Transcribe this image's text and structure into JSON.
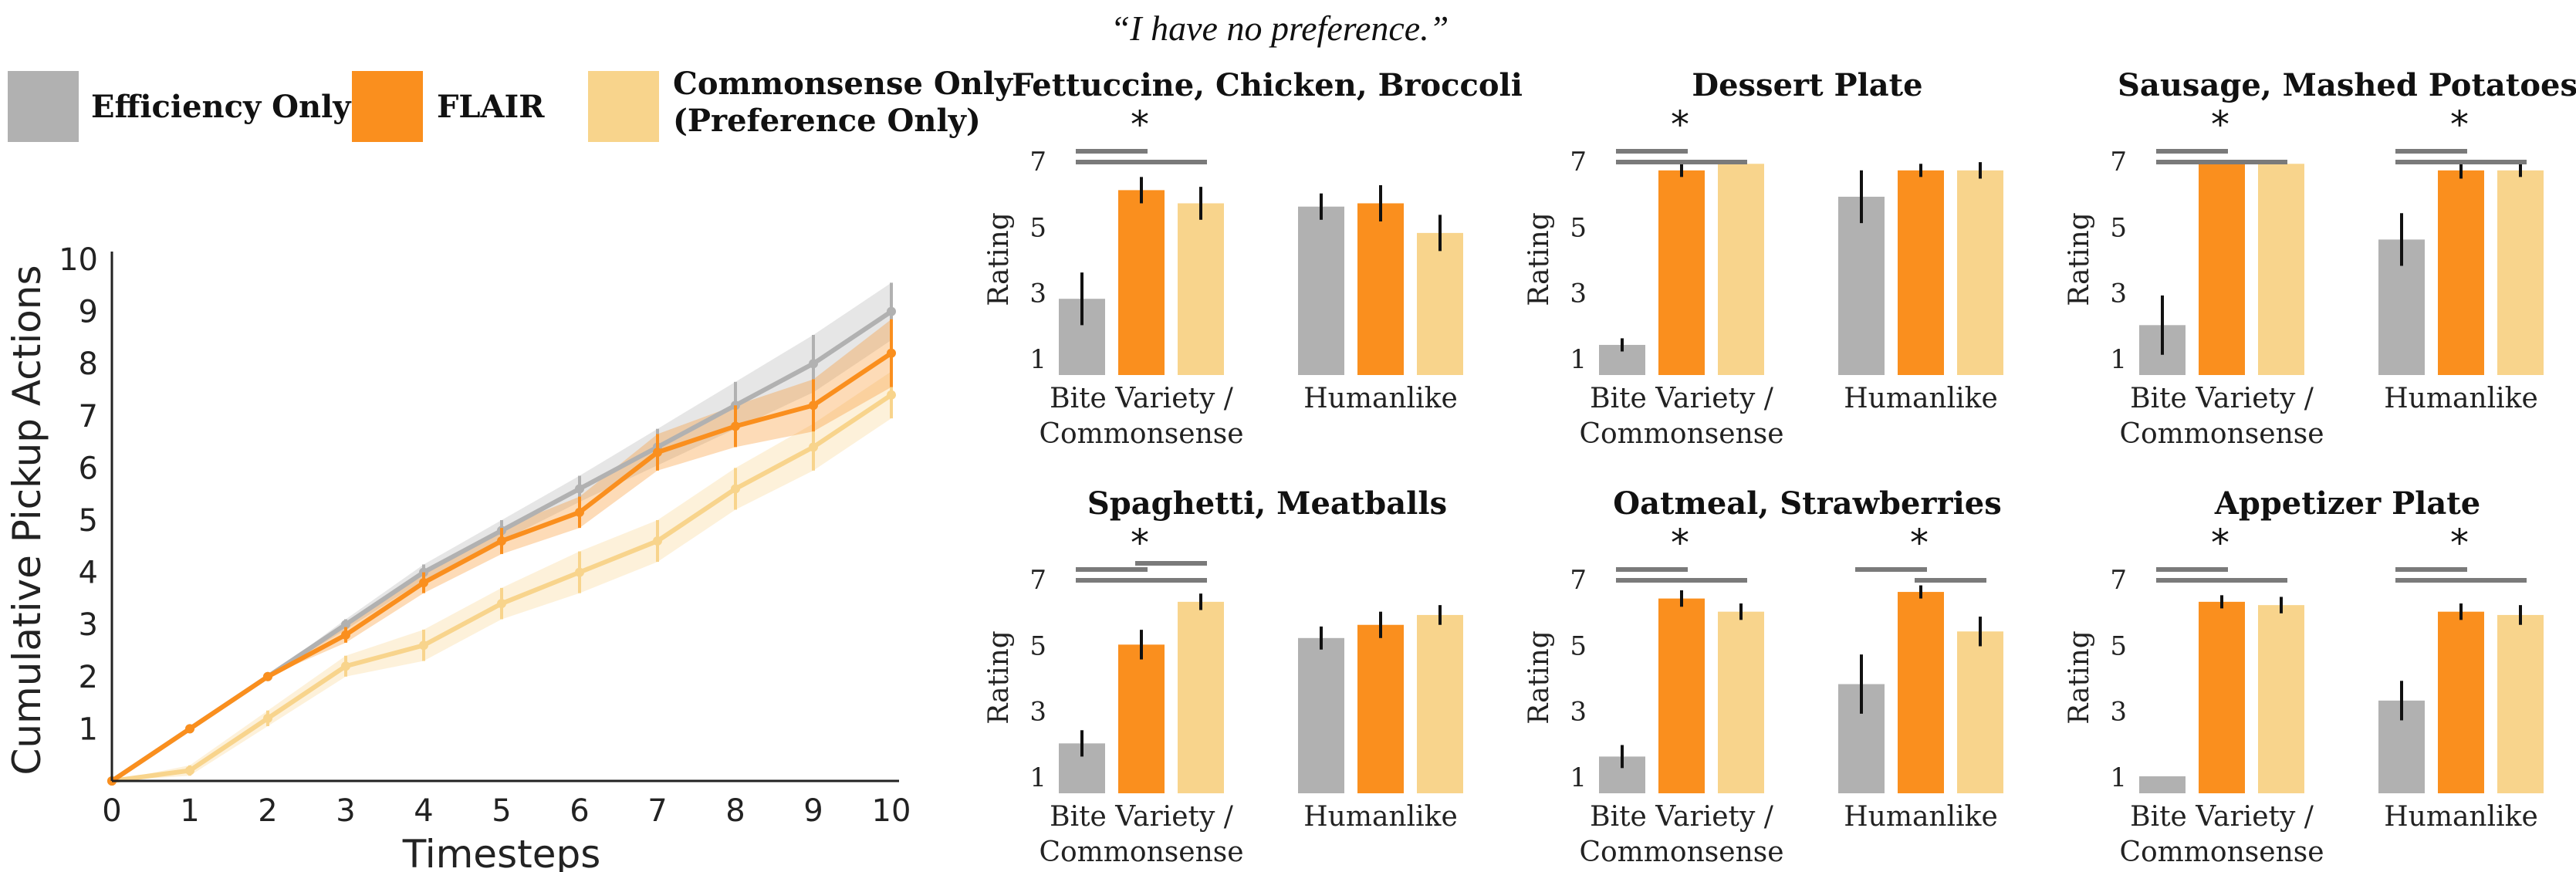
{
  "headline": "“I have no preference.”",
  "legend": [
    {
      "label": "Efficiency Only",
      "color": "#b1b1b1"
    },
    {
      "label": "FLAIR",
      "color": "#fa8f1e"
    },
    {
      "label": "Commonsense Only (Preference Only)",
      "lines": [
        "Commonsense Only",
        "(Preference Only)"
      ],
      "color": "#f8d48c"
    }
  ],
  "colors": {
    "efficiency": "#b1b1b1",
    "flair": "#fa8f1e",
    "commonsense": "#f8d48c",
    "bracket": "#7a7a7a"
  },
  "chart_data": [
    {
      "type": "line",
      "xlabel": "Timesteps",
      "ylabel": "Cumulative Pickup Actions",
      "xlim": [
        0,
        10
      ],
      "ylim": [
        0,
        10
      ],
      "xticks": [
        0,
        1,
        2,
        3,
        4,
        5,
        6,
        7,
        8,
        9,
        10
      ],
      "yticks": [
        1,
        2,
        3,
        4,
        5,
        6,
        7,
        8,
        9,
        10
      ],
      "grid": false,
      "series": [
        {
          "name": "Efficiency Only",
          "x": [
            0,
            1,
            2,
            3,
            4,
            5,
            6,
            7,
            8,
            9,
            10
          ],
          "y": [
            0,
            1,
            2,
            3,
            4,
            4.8,
            5.6,
            6.4,
            7.2,
            8,
            9
          ],
          "err": [
            0,
            0,
            0,
            0.1,
            0.15,
            0.2,
            0.25,
            0.35,
            0.45,
            0.55,
            0.55
          ]
        },
        {
          "name": "FLAIR",
          "x": [
            0,
            1,
            2,
            3,
            4,
            5,
            6,
            7,
            8,
            9,
            10
          ],
          "y": [
            0,
            1,
            2,
            2.8,
            3.8,
            4.6,
            5.15,
            6.3,
            6.8,
            7.2,
            8.2
          ],
          "err": [
            0,
            0,
            0,
            0.15,
            0.2,
            0.25,
            0.3,
            0.35,
            0.4,
            0.5,
            0.65
          ]
        },
        {
          "name": "Commonsense Only",
          "x": [
            0,
            1,
            2,
            3,
            4,
            5,
            6,
            7,
            8,
            9,
            10
          ],
          "y": [
            0,
            0.2,
            1.2,
            2.2,
            2.6,
            3.4,
            4,
            4.6,
            5.6,
            6.4,
            7.4
          ],
          "err": [
            0,
            0.1,
            0.15,
            0.2,
            0.3,
            0.3,
            0.4,
            0.4,
            0.4,
            0.45,
            0.45
          ]
        }
      ]
    },
    {
      "type": "bar",
      "title": "Fettuccine, Chicken, Broccoli",
      "ylabel": "Rating",
      "ylim": [
        1,
        7
      ],
      "yticks": [
        1,
        3,
        5,
        7
      ],
      "groups": [
        {
          "label": "Bite Variety / Commonsense",
          "lines": [
            "Bite Variety /",
            "Commonsense"
          ],
          "values": [
            2.8,
            6.1,
            5.7
          ],
          "err": [
            0.8,
            0.4,
            0.5
          ]
        },
        {
          "label": "Humanlike",
          "lines": [
            "Humanlike"
          ],
          "values": [
            5.6,
            5.7,
            4.8
          ],
          "err": [
            0.4,
            0.55,
            0.55
          ]
        }
      ],
      "significance": [
        {
          "group": 0,
          "star": "*",
          "pairs": [
            [
              0,
              1
            ],
            [
              0,
              2
            ]
          ]
        }
      ]
    },
    {
      "type": "bar",
      "title": "Dessert Plate",
      "ylabel": "Rating",
      "ylim": [
        1,
        7
      ],
      "yticks": [
        1,
        3,
        5,
        7
      ],
      "groups": [
        {
          "label": "Bite Variety / Commonsense",
          "lines": [
            "Bite Variety /",
            "Commonsense"
          ],
          "values": [
            1.4,
            6.7,
            6.9
          ],
          "err": [
            0.2,
            0.2,
            0
          ]
        },
        {
          "label": "Humanlike",
          "lines": [
            "Humanlike"
          ],
          "values": [
            5.9,
            6.7,
            6.7
          ],
          "err": [
            0.8,
            0.2,
            0.25
          ]
        }
      ],
      "significance": [
        {
          "group": 0,
          "star": "*",
          "pairs": [
            [
              0,
              1
            ],
            [
              0,
              2
            ]
          ]
        }
      ]
    },
    {
      "type": "bar",
      "title": "Sausage, Mashed Potatoes",
      "ylabel": "Rating",
      "ylim": [
        1,
        7
      ],
      "yticks": [
        1,
        3,
        5,
        7
      ],
      "groups": [
        {
          "label": "Bite Variety / Commonsense",
          "lines": [
            "Bite Variety /",
            "Commonsense"
          ],
          "values": [
            2.0,
            6.9,
            6.9
          ],
          "err": [
            0.9,
            0,
            0
          ]
        },
        {
          "label": "Humanlike",
          "lines": [
            "Humanlike"
          ],
          "values": [
            4.6,
            6.7,
            6.7
          ],
          "err": [
            0.8,
            0.25,
            0.2
          ]
        }
      ],
      "significance": [
        {
          "group": 0,
          "star": "*",
          "pairs": [
            [
              0,
              1
            ],
            [
              0,
              2
            ]
          ]
        },
        {
          "group": 1,
          "star": "*",
          "pairs": [
            [
              0,
              1
            ],
            [
              0,
              2
            ]
          ]
        }
      ]
    },
    {
      "type": "bar",
      "title": "Spaghetti, Meatballs",
      "ylabel": "Rating",
      "ylim": [
        1,
        7
      ],
      "yticks": [
        1,
        3,
        5,
        7
      ],
      "groups": [
        {
          "label": "Bite Variety / Commonsense",
          "lines": [
            "Bite Variety /",
            "Commonsense"
          ],
          "values": [
            2.0,
            5.0,
            6.3
          ],
          "err": [
            0.4,
            0.45,
            0.25
          ]
        },
        {
          "label": "Humanlike",
          "lines": [
            "Humanlike"
          ],
          "values": [
            5.2,
            5.6,
            5.9
          ],
          "err": [
            0.35,
            0.4,
            0.3
          ]
        }
      ],
      "significance": [
        {
          "group": 0,
          "star": "*",
          "pairs": [
            [
              0,
              1
            ],
            [
              0,
              2
            ],
            [
              1,
              2
            ]
          ]
        }
      ]
    },
    {
      "type": "bar",
      "title": "Oatmeal, Strawberries",
      "ylabel": "Rating",
      "ylim": [
        1,
        7
      ],
      "yticks": [
        1,
        3,
        5,
        7
      ],
      "groups": [
        {
          "label": "Bite Variety / Commonsense",
          "lines": [
            "Bite Variety /",
            "Commonsense"
          ],
          "values": [
            1.6,
            6.4,
            6.0
          ],
          "err": [
            0.35,
            0.25,
            0.25
          ]
        },
        {
          "label": "Humanlike",
          "lines": [
            "Humanlike"
          ],
          "values": [
            3.8,
            6.6,
            5.4
          ],
          "err": [
            0.9,
            0.2,
            0.45
          ]
        }
      ],
      "significance": [
        {
          "group": 0,
          "star": "*",
          "pairs": [
            [
              0,
              1
            ],
            [
              0,
              2
            ]
          ]
        },
        {
          "group": 1,
          "star": "*",
          "pairs": [
            [
              0,
              1
            ],
            [
              1,
              2
            ]
          ]
        }
      ]
    },
    {
      "type": "bar",
      "title": "Appetizer Plate",
      "ylabel": "Rating",
      "ylim": [
        1,
        7
      ],
      "yticks": [
        1,
        3,
        5,
        7
      ],
      "groups": [
        {
          "label": "Bite Variety / Commonsense",
          "lines": [
            "Bite Variety /",
            "Commonsense"
          ],
          "values": [
            1.0,
            6.3,
            6.2
          ],
          "err": [
            0,
            0.2,
            0.25
          ]
        },
        {
          "label": "Humanlike",
          "lines": [
            "Humanlike"
          ],
          "values": [
            3.3,
            6.0,
            5.9
          ],
          "err": [
            0.6,
            0.25,
            0.3
          ]
        }
      ],
      "significance": [
        {
          "group": 0,
          "star": "*",
          "pairs": [
            [
              0,
              1
            ],
            [
              0,
              2
            ]
          ]
        },
        {
          "group": 1,
          "star": "*",
          "pairs": [
            [
              0,
              1
            ],
            [
              0,
              2
            ]
          ]
        }
      ]
    }
  ]
}
